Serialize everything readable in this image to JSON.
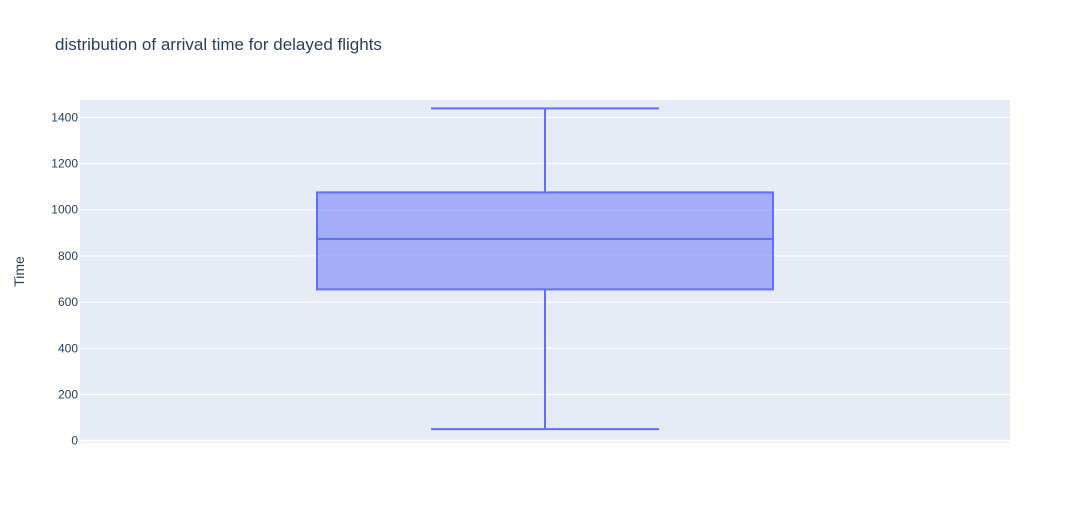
{
  "chart_data": {
    "type": "box",
    "title": "distribution of arrival time for delayed flights",
    "xlabel": "",
    "ylabel": "Time",
    "ylim": [
      -10,
      1475
    ],
    "yticks": [
      0,
      200,
      400,
      600,
      800,
      1000,
      1200,
      1400
    ],
    "grid": true,
    "legend": "none",
    "box": {
      "min": 50,
      "q1": 655,
      "median": 873,
      "q3": 1075,
      "max": 1439
    },
    "colors": {
      "plot_bg": "#e5ecf6",
      "grid": "#ffffff",
      "box_line": "#636efa",
      "box_fill": "rgba(99,110,250,0.5)",
      "text": "#2a3f5f"
    }
  }
}
